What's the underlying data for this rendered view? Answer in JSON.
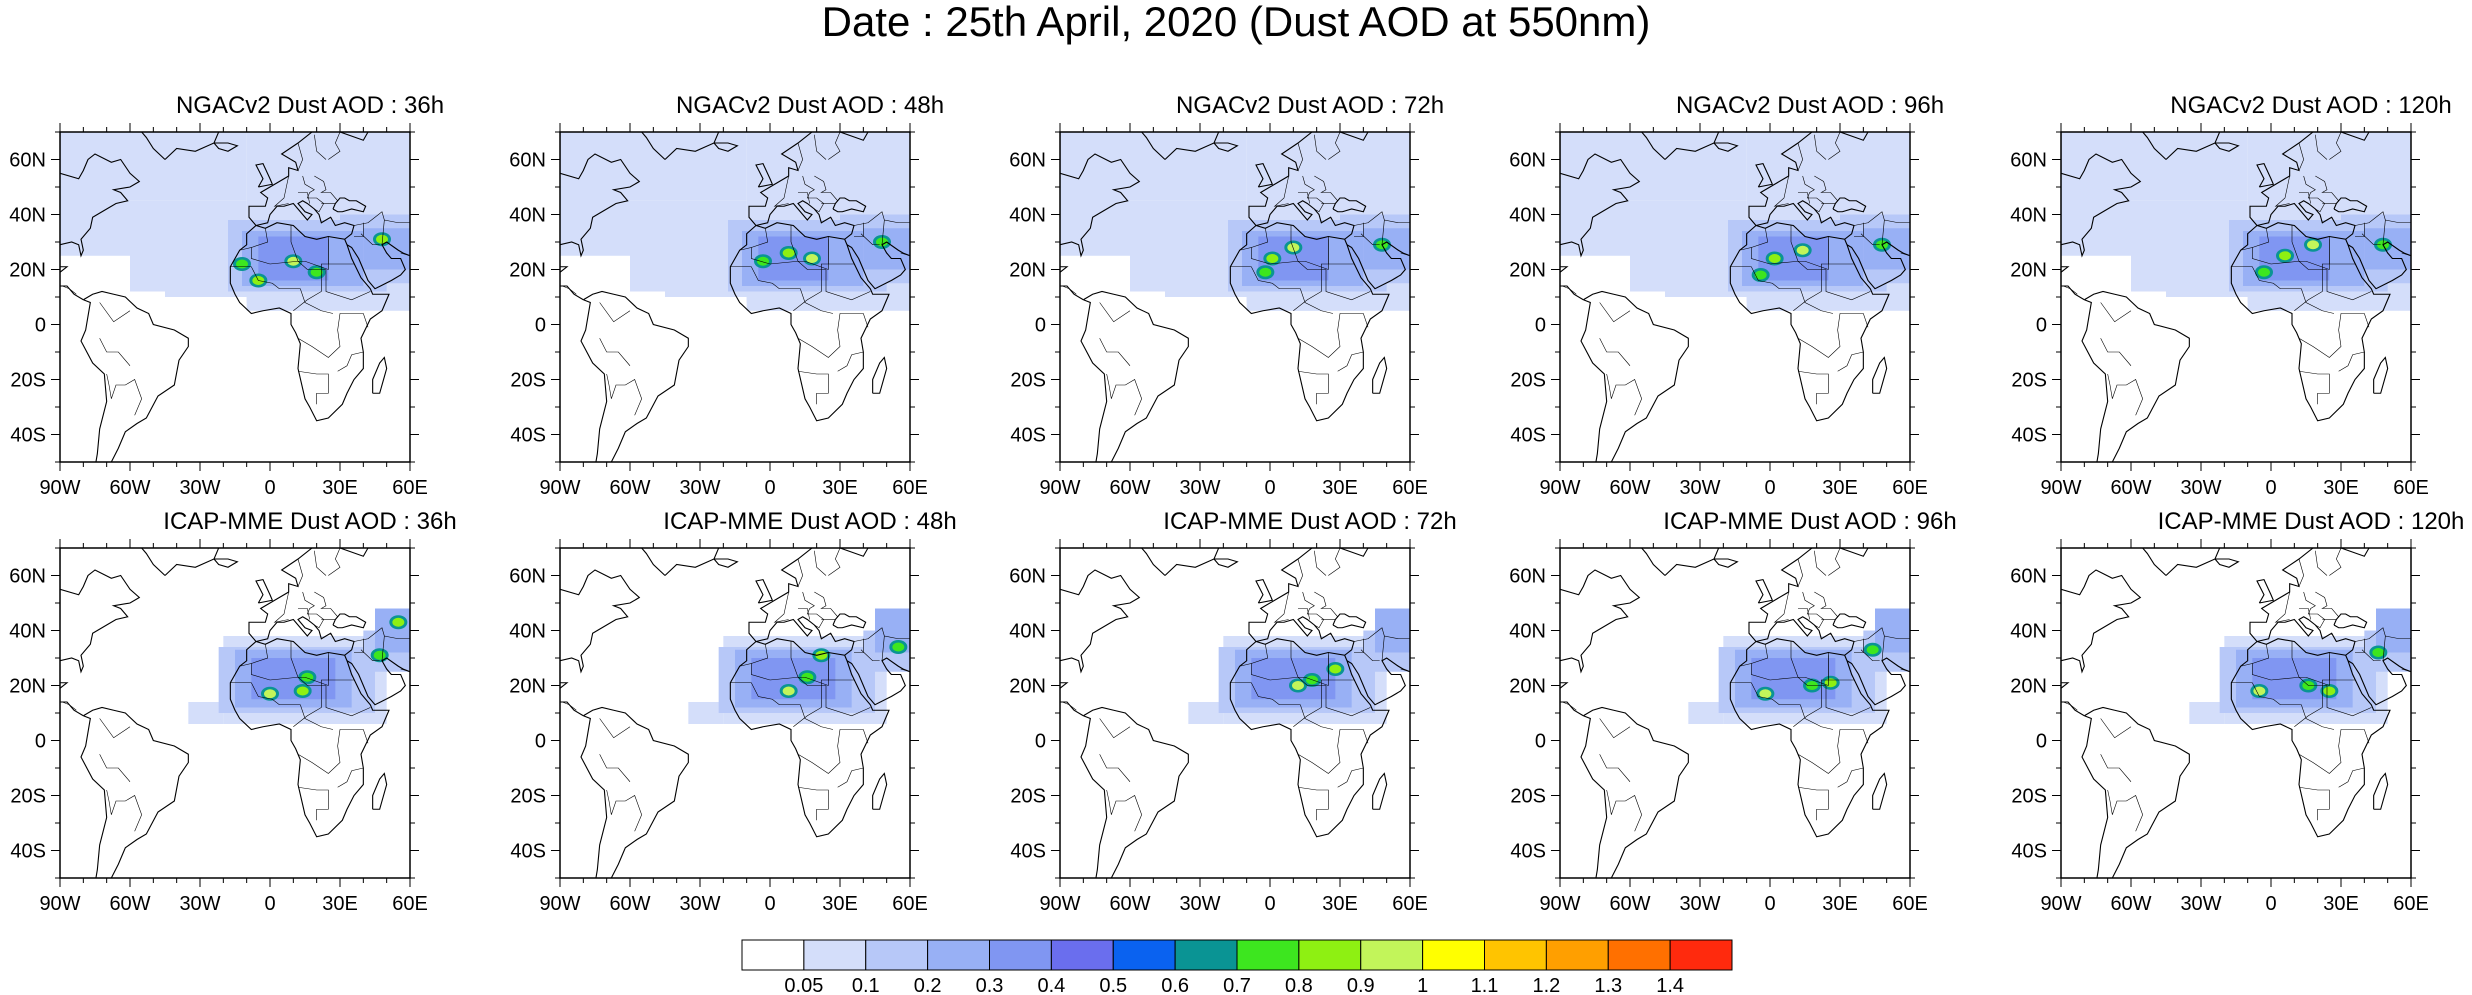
{
  "title": "Date : 25th April, 2020 (Dust AOD at 550nm)",
  "rows": [
    {
      "model": "NGACv2",
      "panels": [
        {
          "title": "NGACv2 Dust AOD : 36h",
          "lead": "36h",
          "max_spots": [
            [
              -12,
              22
            ],
            [
              -5,
              16
            ],
            [
              10,
              23
            ],
            [
              20,
              19
            ],
            [
              48,
              31
            ]
          ]
        },
        {
          "title": "NGACv2 Dust AOD : 48h",
          "lead": "48h",
          "max_spots": [
            [
              -3,
              23
            ],
            [
              8,
              26
            ],
            [
              18,
              24
            ],
            [
              48,
              30
            ]
          ]
        },
        {
          "title": "NGACv2 Dust AOD : 72h",
          "lead": "72h",
          "max_spots": [
            [
              -2,
              19
            ],
            [
              1,
              24
            ],
            [
              10,
              28
            ],
            [
              48,
              29
            ]
          ]
        },
        {
          "title": "NGACv2 Dust AOD : 96h",
          "lead": "96h",
          "max_spots": [
            [
              -4,
              18
            ],
            [
              2,
              24
            ],
            [
              14,
              27
            ],
            [
              48,
              29
            ]
          ]
        },
        {
          "title": "NGACv2 Dust AOD : 120h",
          "lead": "120h",
          "max_spots": [
            [
              -3,
              19
            ],
            [
              6,
              25
            ],
            [
              18,
              29
            ],
            [
              48,
              29
            ]
          ]
        }
      ]
    },
    {
      "model": "ICAP-MME",
      "panels": [
        {
          "title": "ICAP-MME Dust AOD : 36h",
          "lead": "36h",
          "max_spots": [
            [
              16,
              23
            ],
            [
              14,
              18
            ],
            [
              0,
              17
            ],
            [
              47,
              31
            ],
            [
              55,
              43
            ]
          ]
        },
        {
          "title": "ICAP-MME Dust AOD : 48h",
          "lead": "48h",
          "max_spots": [
            [
              16,
              23
            ],
            [
              22,
              31
            ],
            [
              8,
              18
            ],
            [
              55,
              34
            ]
          ]
        },
        {
          "title": "ICAP-MME Dust AOD : 72h",
          "lead": "72h",
          "max_spots": [
            [
              18,
              22
            ],
            [
              28,
              26
            ],
            [
              12,
              20
            ]
          ]
        },
        {
          "title": "ICAP-MME Dust AOD : 96h",
          "lead": "96h",
          "max_spots": [
            [
              18,
              20
            ],
            [
              26,
              21
            ],
            [
              -2,
              17
            ],
            [
              44,
              33
            ]
          ]
        },
        {
          "title": "ICAP-MME Dust AOD : 120h",
          "lead": "120h",
          "max_spots": [
            [
              16,
              20
            ],
            [
              25,
              18
            ],
            [
              -5,
              18
            ],
            [
              46,
              32
            ]
          ]
        }
      ]
    }
  ],
  "map_extent": {
    "lon": [
      -90,
      60
    ],
    "lat": [
      -50,
      70
    ]
  },
  "lon_ticks": [
    "90W",
    "60W",
    "30W",
    "0",
    "30E",
    "60E"
  ],
  "lat_ticks": [
    "60N",
    "40N",
    "20N",
    "0",
    "20S",
    "40S"
  ],
  "colorbar": {
    "labels": [
      "0.05",
      "0.1",
      "0.2",
      "0.3",
      "0.4",
      "0.5",
      "0.6",
      "0.7",
      "0.8",
      "0.9",
      "1",
      "1.1",
      "1.2",
      "1.3",
      "1.4"
    ],
    "colors": [
      "#ffffff",
      "#d4defa",
      "#b7c8f8",
      "#98b0f5",
      "#8096f2",
      "#6a6eee",
      "#0a62f0",
      "#0a9494",
      "#3de61f",
      "#8ef012",
      "#c2f55a",
      "#ffff00",
      "#ffc400",
      "#ff9f00",
      "#ff7000",
      "#ff2a0d"
    ]
  },
  "colors": {
    "coastline": "#000000",
    "frame": "#000000"
  }
}
